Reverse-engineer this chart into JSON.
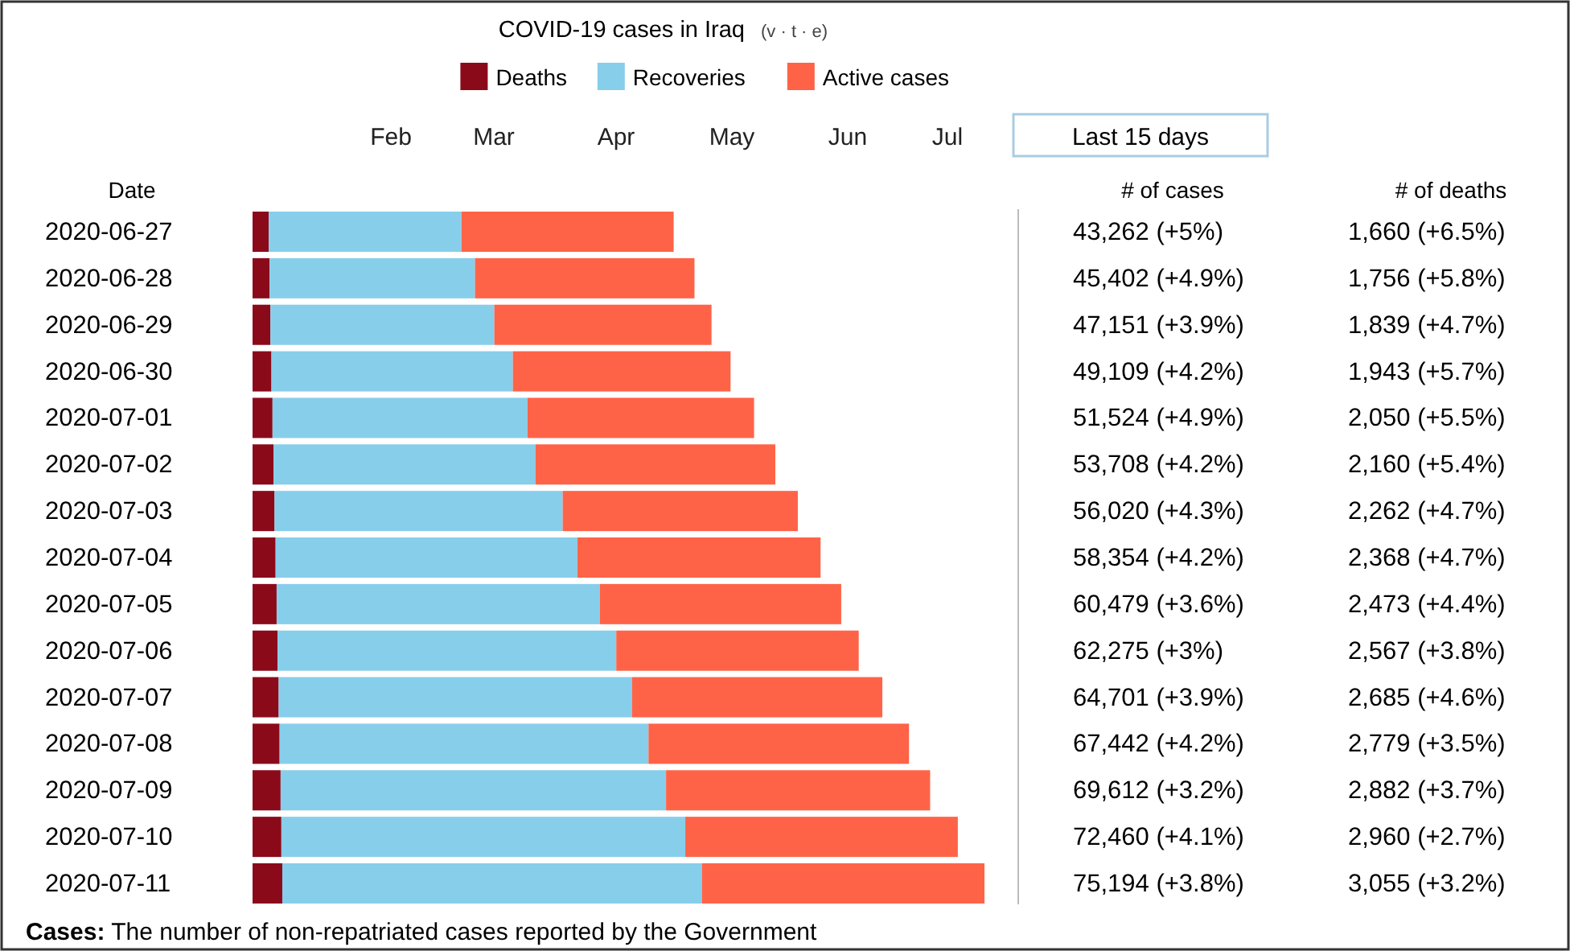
{
  "chart_data": {
    "type": "bar",
    "orientation": "horizontal",
    "stacked": true,
    "title": "COVID-19 cases in Iraq",
    "ylabel": "Date",
    "legend": "top",
    "categories": [
      "2020-06-27",
      "2020-06-28",
      "2020-06-29",
      "2020-06-30",
      "2020-07-01",
      "2020-07-02",
      "2020-07-03",
      "2020-07-04",
      "2020-07-05",
      "2020-07-06",
      "2020-07-07",
      "2020-07-08",
      "2020-07-09",
      "2020-07-10",
      "2020-07-11"
    ],
    "series": [
      {
        "name": "Deaths",
        "color": "#8b0a1a",
        "values": [
          1660,
          1756,
          1839,
          1943,
          2050,
          2160,
          2262,
          2368,
          2473,
          2567,
          2685,
          2779,
          2882,
          2960,
          3055
        ],
        "value_labels": [
          "1,660 (+6.5%)",
          "1,756 (+5.8%)",
          "1,839 (+4.7%)",
          "1,943 (+5.7%)",
          "2,050 (+5.5%)",
          "2,160 (+5.4%)",
          "2,262 (+4.7%)",
          "2,368 (+4.7%)",
          "2,473 (+4.4%)",
          "2,567 (+3.8%)",
          "2,685 (+4.6%)",
          "2,779 (+3.5%)",
          "2,882 (+3.7%)",
          "2,960 (+2.7%)",
          "3,055 (+3.2%)"
        ]
      },
      {
        "name": "Recoveries",
        "color": "#87ceeb",
        "values": [
          19800,
          21100,
          23000,
          24800,
          26200,
          26900,
          29600,
          31000,
          33200,
          34800,
          36300,
          37900,
          39600,
          41500,
          43100
        ]
      },
      {
        "name": "Active cases",
        "color": "#ff6347",
        "values": [
          21802,
          22546,
          22312,
          22366,
          23274,
          24648,
          24158,
          24986,
          24806,
          24908,
          25716,
          26763,
          27130,
          27998,
          29039
        ]
      }
    ],
    "annotations": [
      "(v · t · e)",
      "Feb",
      "Mar",
      "Apr",
      "May",
      "Jun",
      "Jul",
      "Last 15 days",
      "# of cases",
      "# of deaths",
      "Cases: The number of non-repatriated cases reported by the Government",
      "43,262 (+5%)",
      "45,402 (+4.9%)",
      "47,151 (+3.9%)",
      "49,109 (+4.2%)",
      "51,524 (+4.9%)",
      "53,708 (+4.2%)",
      "56,020 (+4.3%)",
      "58,354 (+4.2%)",
      "60,479 (+3.6%)",
      "62,275 (+3%)",
      "64,701 (+3.9%)",
      "67,442 (+4.2%)",
      "69,612 (+3.2%)",
      "72,460 (+4.1%)",
      "75,194 (+3.8%)"
    ]
  }
}
